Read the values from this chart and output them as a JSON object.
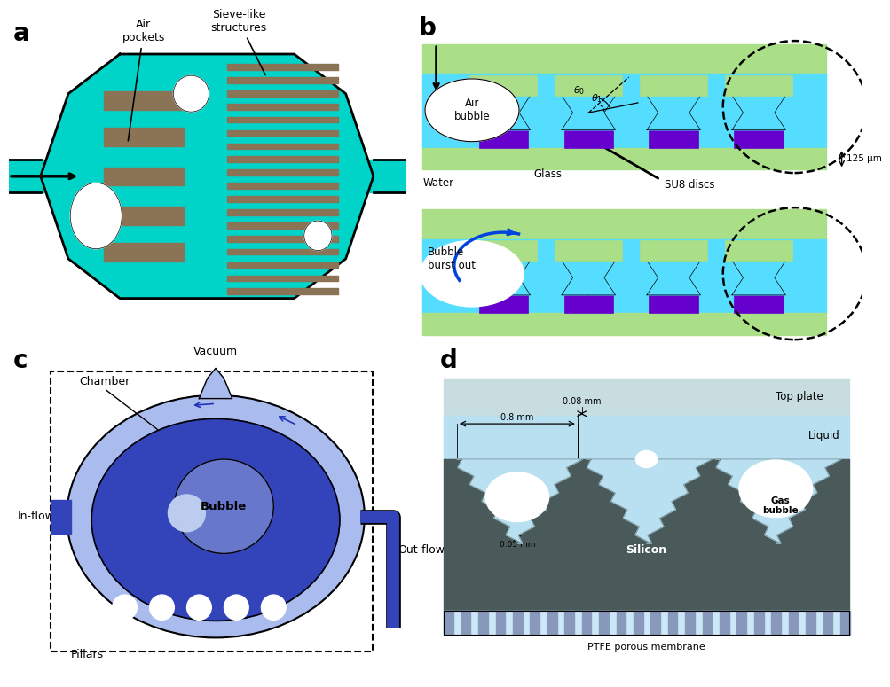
{
  "panel_a": {
    "label": "a",
    "channel_color": "#00D4C8",
    "bar_color": "#8B7355",
    "air_pocket_color": "#FFFFFF",
    "border_color": "#000000"
  },
  "panel_b": {
    "label": "b",
    "glass_color": "#AADE87",
    "su8_color": "#6600CC",
    "water_color": "#55DDFF",
    "air_bubble_color": "#FFFFFF",
    "measurement": "125 μm"
  },
  "panel_c": {
    "label": "c",
    "outer_color": "#7788DD",
    "mid_color": "#3344BB",
    "inner_color": "#6677CC",
    "highlight_color": "#99AAEE"
  },
  "panel_d": {
    "label": "d",
    "top_plate_color": "#C8DDE0",
    "silicon_color": "#4A5A5A",
    "liquid_color": "#B8E0F0",
    "membrane_light": "#CCE8F8",
    "membrane_stripe": "#AAAACC"
  },
  "bg_color": "#FFFFFF",
  "label_fontsize": 20
}
